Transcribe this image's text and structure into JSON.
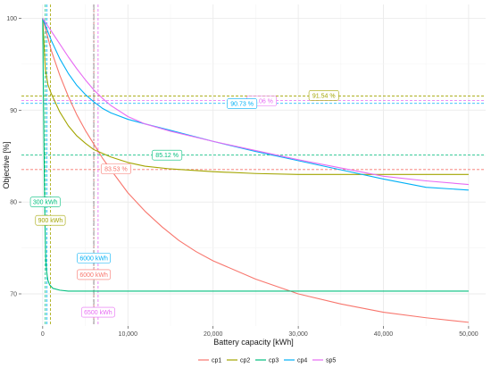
{
  "chart_data": {
    "type": "line",
    "xlabel": "Battery capacity [kWh]",
    "ylabel": "Objective [%]",
    "xlim": [
      -2500,
      52000
    ],
    "ylim": [
      66.5,
      101.5
    ],
    "x_ticks": [
      0,
      10000,
      20000,
      30000,
      40000,
      50000
    ],
    "x_tick_labels": [
      "0",
      "10,000",
      "20,000",
      "30,000",
      "40,000",
      "50,000"
    ],
    "y_ticks": [
      70,
      80,
      90,
      100
    ],
    "y_tick_labels": [
      "70",
      "80",
      "90",
      "100"
    ],
    "grid": true,
    "legend_position": "bottom",
    "series": [
      {
        "name": "cp1",
        "color": "#F8766D",
        "points": [
          [
            0,
            100
          ],
          [
            1000,
            96.5
          ],
          [
            2000,
            93.8
          ],
          [
            3000,
            91.5
          ],
          [
            4000,
            89.5
          ],
          [
            5000,
            87.8
          ],
          [
            6000,
            86.3
          ],
          [
            7000,
            84.8
          ],
          [
            8000,
            83.5
          ],
          [
            10000,
            81
          ],
          [
            12000,
            79
          ],
          [
            14000,
            77.3
          ],
          [
            16000,
            75.8
          ],
          [
            18000,
            74.6
          ],
          [
            20000,
            73.6
          ],
          [
            25000,
            71.6
          ],
          [
            30000,
            70
          ],
          [
            35000,
            68.9
          ],
          [
            40000,
            68
          ],
          [
            45000,
            67.4
          ],
          [
            50000,
            66.9
          ]
        ]
      },
      {
        "name": "cp2",
        "color": "#A3A500",
        "points": [
          [
            0,
            100
          ],
          [
            300,
            94.5
          ],
          [
            600,
            92.8
          ],
          [
            1000,
            91.8
          ],
          [
            2000,
            89.8
          ],
          [
            3000,
            88.3
          ],
          [
            4000,
            87.2
          ],
          [
            5000,
            86.4
          ],
          [
            6000,
            85.7
          ],
          [
            8000,
            84.9
          ],
          [
            10000,
            84.3
          ],
          [
            12000,
            83.9
          ],
          [
            15000,
            83.6
          ],
          [
            20000,
            83.3
          ],
          [
            25000,
            83.1
          ],
          [
            30000,
            83
          ],
          [
            40000,
            83
          ],
          [
            50000,
            83
          ]
        ]
      },
      {
        "name": "cp3",
        "color": "#00BF7D",
        "points": [
          [
            0,
            100
          ],
          [
            100,
            90
          ],
          [
            200,
            82
          ],
          [
            280,
            77
          ],
          [
            350,
            74
          ],
          [
            450,
            72.5
          ],
          [
            600,
            71.5
          ],
          [
            800,
            71
          ],
          [
            1200,
            70.6
          ],
          [
            2000,
            70.4
          ],
          [
            3000,
            70.3
          ],
          [
            50000,
            70.3
          ]
        ]
      },
      {
        "name": "cp4",
        "color": "#00B0F6",
        "points": [
          [
            0,
            100
          ],
          [
            500,
            98.8
          ],
          [
            1000,
            97.6
          ],
          [
            2000,
            95.6
          ],
          [
            3000,
            94
          ],
          [
            4000,
            92.7
          ],
          [
            5000,
            91.7
          ],
          [
            6000,
            90.9
          ],
          [
            7000,
            90.2
          ],
          [
            8000,
            89.7
          ],
          [
            10000,
            89
          ],
          [
            12000,
            88.5
          ],
          [
            15000,
            87.8
          ],
          [
            20000,
            86.6
          ],
          [
            25000,
            85.5
          ],
          [
            30000,
            84.5
          ],
          [
            35000,
            83.5
          ],
          [
            40000,
            82.5
          ],
          [
            45000,
            81.6
          ],
          [
            50000,
            81.3
          ]
        ]
      },
      {
        "name": "sp5",
        "color": "#E76BF3",
        "points": [
          [
            0,
            100
          ],
          [
            500,
            99.3
          ],
          [
            1000,
            98.6
          ],
          [
            2000,
            97.2
          ],
          [
            3000,
            95.8
          ],
          [
            4000,
            94.5
          ],
          [
            5000,
            93.3
          ],
          [
            6000,
            92.2
          ],
          [
            7000,
            91.3
          ],
          [
            8000,
            90.5
          ],
          [
            10000,
            89.3
          ],
          [
            12000,
            88.5
          ],
          [
            15000,
            87.7
          ],
          [
            20000,
            86.6
          ],
          [
            25000,
            85.6
          ],
          [
            30000,
            84.6
          ],
          [
            35000,
            83.7
          ],
          [
            40000,
            82.8
          ],
          [
            45000,
            82.3
          ],
          [
            50000,
            81.9
          ]
        ]
      }
    ],
    "reference_lines": {
      "horizontal": [
        {
          "y": 91.54,
          "color": "#A3A500"
        },
        {
          "y": 91.06,
          "color": "#E76BF3"
        },
        {
          "y": 90.73,
          "color": "#00B0F6"
        },
        {
          "y": 85.12,
          "color": "#00BF7D"
        },
        {
          "y": 83.53,
          "color": "#F8766D"
        }
      ],
      "vertical": [
        {
          "x": 300,
          "color": "#00BF7D"
        },
        {
          "x": 500,
          "color": "#00B0F6"
        },
        {
          "x": 900,
          "color": "#A3A500"
        },
        {
          "x": 6000,
          "color": "#00B0F6"
        },
        {
          "x": 6000,
          "color": "#F8766D"
        },
        {
          "x": 6500,
          "color": "#E76BF3"
        }
      ]
    },
    "annotations": [
      {
        "text": "91.54 %",
        "x": 33000,
        "y": 91.6,
        "color": "#A3A500"
      },
      {
        "text": "91.06 %",
        "x": 25700,
        "y": 91.0,
        "color": "#E76BF3"
      },
      {
        "text": "90.73 %",
        "x": 23400,
        "y": 90.7,
        "color": "#00B0F6"
      },
      {
        "text": "85.12 %",
        "x": 14600,
        "y": 85.1,
        "color": "#00BF7D"
      },
      {
        "text": "83.53 %",
        "x": 8600,
        "y": 83.6,
        "color": "#F8766D"
      },
      {
        "text": "300 kWh",
        "x": 300,
        "y": 80.0,
        "color": "#00BF7D"
      },
      {
        "text": "900 kWh",
        "x": 900,
        "y": 78.0,
        "color": "#A3A500"
      },
      {
        "text": "6000 kWh",
        "x": 6000,
        "y": 73.9,
        "color": "#00B0F6"
      },
      {
        "text": "6000 kWh",
        "x": 6000,
        "y": 72.1,
        "color": "#F8766D"
      },
      {
        "text": "6500 kWh",
        "x": 6500,
        "y": 68.0,
        "color": "#E76BF3"
      }
    ]
  }
}
